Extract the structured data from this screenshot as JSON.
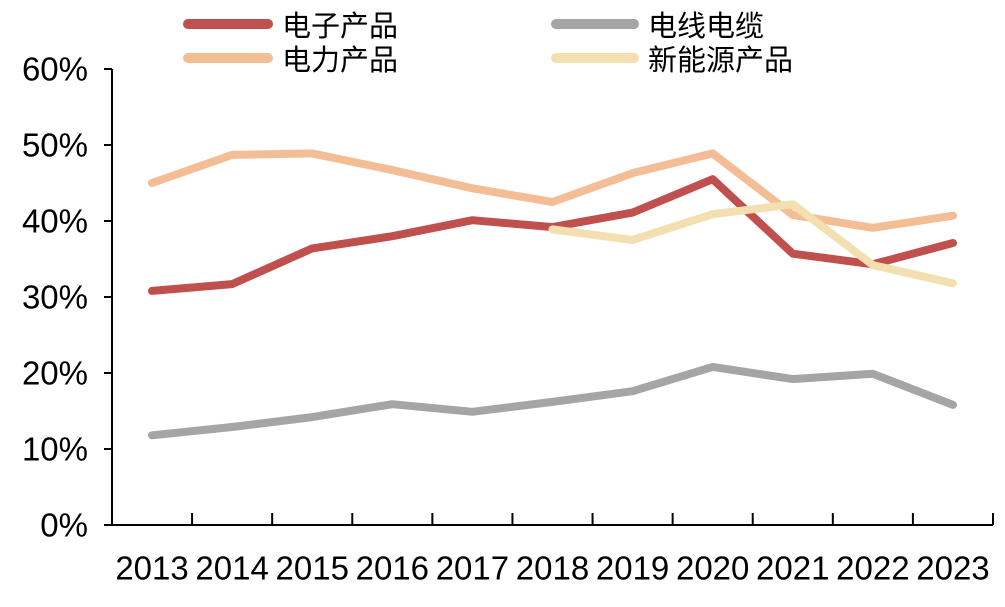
{
  "chart_data": {
    "type": "line",
    "categories": [
      "2013",
      "2014",
      "2015",
      "2016",
      "2017",
      "2018",
      "2019",
      "2020",
      "2021",
      "2022",
      "2023"
    ],
    "ylim": [
      0,
      60
    ],
    "y_tick_values": [
      0,
      10,
      20,
      30,
      40,
      50,
      60
    ],
    "y_tick_labels": [
      "0%",
      "10%",
      "20%",
      "30%",
      "40%",
      "50%",
      "60%"
    ],
    "grid": false,
    "legend_position": "top",
    "series": [
      {
        "name": "电子产品",
        "color": "#c0504d",
        "values": [
          30.8,
          31.7,
          36.4,
          38.0,
          40.1,
          39.2,
          41.1,
          45.5,
          35.7,
          34.3,
          37.1
        ]
      },
      {
        "name": "电线电缆",
        "color": "#a5a5a5",
        "values": [
          11.8,
          12.9,
          14.2,
          15.9,
          14.9,
          16.2,
          17.6,
          20.8,
          19.2,
          19.9,
          15.8
        ]
      },
      {
        "name": "电力产品",
        "color": "#f3bd96",
        "values": [
          45.0,
          48.7,
          48.9,
          46.7,
          44.3,
          42.5,
          46.3,
          48.9,
          40.8,
          39.1,
          40.7
        ]
      },
      {
        "name": "新能源产品",
        "color": "#f3dfb0",
        "values": [
          null,
          null,
          null,
          null,
          null,
          38.9,
          37.5,
          40.9,
          42.2,
          34.2,
          31.8
        ]
      }
    ]
  }
}
